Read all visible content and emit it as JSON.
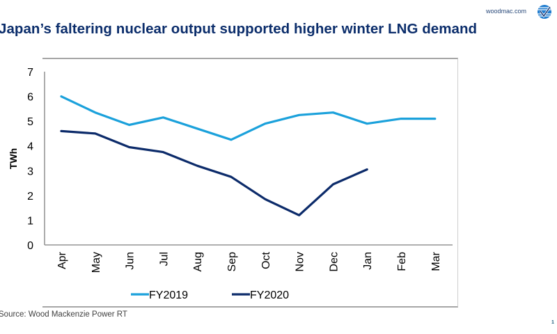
{
  "header": {
    "brand_url": "woodmac.com",
    "logo_icon": "woodmac-logo-icon",
    "title": "Japan’s faltering nuclear output supported higher winter LNG demand"
  },
  "footer": {
    "source": "Source: Wood Mackenzie Power RT",
    "page_number": "1"
  },
  "colors": {
    "title": "#0b2d6b",
    "fy2019": "#1ba1db",
    "fy2020": "#0c2b6a",
    "axis": "#7f7f7f"
  },
  "chart_data": {
    "type": "line",
    "title": "Japan’s faltering nuclear output supported higher winter LNG demand",
    "xlabel": "",
    "ylabel": "TWh",
    "ylim": [
      0,
      7
    ],
    "yticks": [
      0,
      1,
      2,
      3,
      4,
      5,
      6,
      7
    ],
    "grid": false,
    "legend_position": "bottom",
    "categories": [
      "Apr",
      "May",
      "Jun",
      "Jul",
      "Aug",
      "Sep",
      "Oct",
      "Nov",
      "Dec",
      "Jan",
      "Feb",
      "Mar"
    ],
    "series": [
      {
        "name": "FY2019",
        "color": "#1ba1db",
        "values": [
          6.0,
          5.35,
          4.85,
          5.15,
          4.7,
          4.25,
          4.9,
          5.25,
          5.35,
          4.9,
          5.1,
          5.1
        ]
      },
      {
        "name": "FY2020",
        "color": "#0c2b6a",
        "values": [
          4.6,
          4.5,
          3.95,
          3.75,
          3.2,
          2.75,
          1.85,
          1.2,
          2.45,
          3.05,
          null,
          null
        ]
      }
    ]
  }
}
